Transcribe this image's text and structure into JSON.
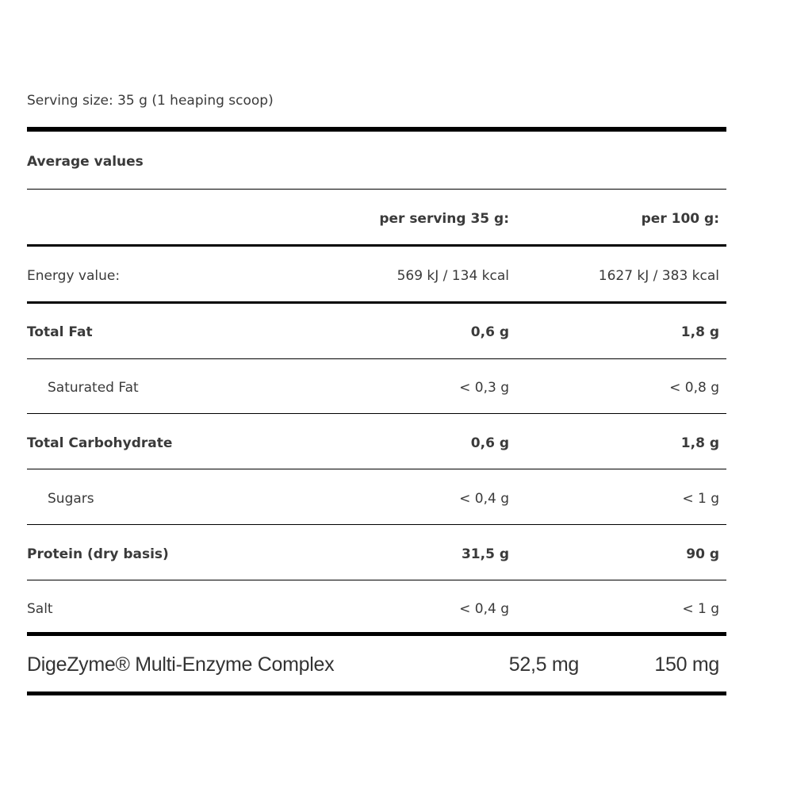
{
  "serving_size": "Serving size: 35 g (1 heaping scoop)",
  "section_title": "Average values",
  "headers": {
    "per_serving": "per serving 35 g:",
    "per_100g": "per 100 g:"
  },
  "rows": [
    {
      "label": "Energy value:",
      "per_serving": "569 kJ / 134 kcal",
      "per_100g": "1627 kJ / 383 kcal",
      "bold": false,
      "indent": false
    },
    {
      "label": "Total Fat",
      "per_serving": "0,6 g",
      "per_100g": "1,8 g",
      "bold": true,
      "indent": false
    },
    {
      "label": "Saturated Fat",
      "per_serving": "< 0,3 g",
      "per_100g": "< 0,8 g",
      "bold": false,
      "indent": true
    },
    {
      "label": "Total Carbohydrate",
      "per_serving": "0,6 g",
      "per_100g": "1,8 g",
      "bold": true,
      "indent": false
    },
    {
      "label": "Sugars",
      "per_serving": "< 0,4 g",
      "per_100g": "< 1 g",
      "bold": false,
      "indent": true
    },
    {
      "label": "Protein (dry basis)",
      "per_serving": "31,5 g",
      "per_100g": "90 g",
      "bold": true,
      "indent": false
    },
    {
      "label": "Salt",
      "per_serving": "< 0,4 g",
      "per_100g": "< 1 g",
      "bold": false,
      "indent": false
    }
  ],
  "enzyme": {
    "label": "DigeZyme® Multi-Enzyme Complex",
    "per_serving": "52,5 mg",
    "per_100g": "150 mg"
  }
}
